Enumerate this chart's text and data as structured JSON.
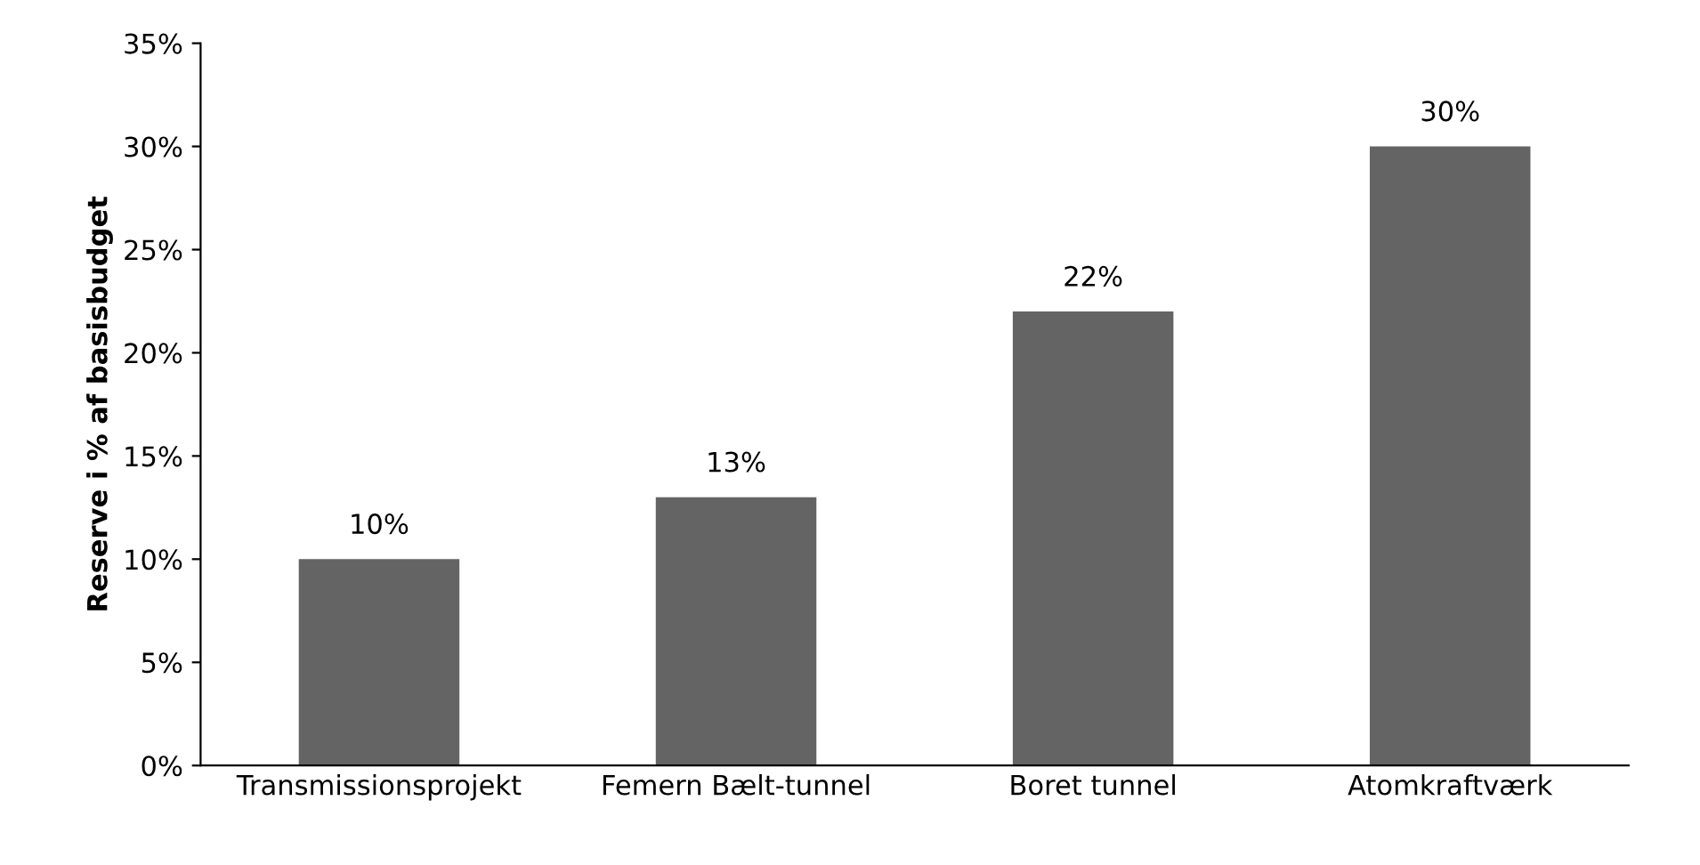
{
  "chart_data": {
    "type": "bar",
    "ylabel": "Reserve i % af basisbudget",
    "categories": [
      "Transmissionsprojekt",
      "Femern Bælt-tunnel",
      "Boret tunnel",
      "Atomkraftværk"
    ],
    "values": [
      10,
      13,
      22,
      30
    ],
    "value_labels": [
      "10%",
      "13%",
      "22%",
      "30%"
    ],
    "color": "#646464",
    "ylim": [
      0,
      35
    ],
    "yticks": [
      {
        "value": 0,
        "label": "0%"
      },
      {
        "value": 5,
        "label": "5%"
      },
      {
        "value": 10,
        "label": "10%"
      },
      {
        "value": 15,
        "label": "15%"
      },
      {
        "value": 20,
        "label": "20%"
      },
      {
        "value": 25,
        "label": "25%"
      },
      {
        "value": 30,
        "label": "30%"
      },
      {
        "value": 35,
        "label": "35%"
      }
    ],
    "grid": false
  }
}
